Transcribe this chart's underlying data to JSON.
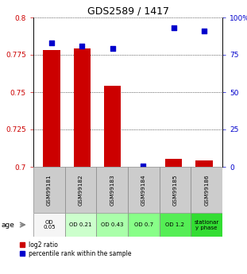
{
  "title": "GDS2589 / 1417",
  "samples": [
    "GSM99181",
    "GSM99182",
    "GSM99183",
    "GSM99184",
    "GSM99185",
    "GSM99186"
  ],
  "log2_ratio": [
    0.778,
    0.779,
    0.754,
    0.7002,
    0.7055,
    0.7045
  ],
  "percentile_rank": [
    83,
    81,
    79,
    0.5,
    93,
    91
  ],
  "ylim_left": [
    0.7,
    0.8
  ],
  "ylim_right": [
    0,
    100
  ],
  "yticks_left": [
    0.7,
    0.725,
    0.75,
    0.775,
    0.8
  ],
  "yticks_right": [
    0,
    25,
    50,
    75,
    100
  ],
  "ytick_labels_left": [
    "0.7",
    "0.725",
    "0.75",
    "0.775",
    "0.8"
  ],
  "ytick_labels_right": [
    "0",
    "25",
    "50",
    "75",
    "100%"
  ],
  "bar_color": "#CC0000",
  "scatter_color": "#0000CC",
  "age_labels": [
    "OD\n0.05",
    "OD 0.21",
    "OD 0.43",
    "OD 0.7",
    "OD 1.2",
    "stationar\ny phase"
  ],
  "age_colors": [
    "#f5f5f5",
    "#ccffcc",
    "#aaffaa",
    "#88ff88",
    "#55ee55",
    "#33dd33"
  ],
  "sample_bg_color": "#cccccc",
  "grid_color": "#000000"
}
